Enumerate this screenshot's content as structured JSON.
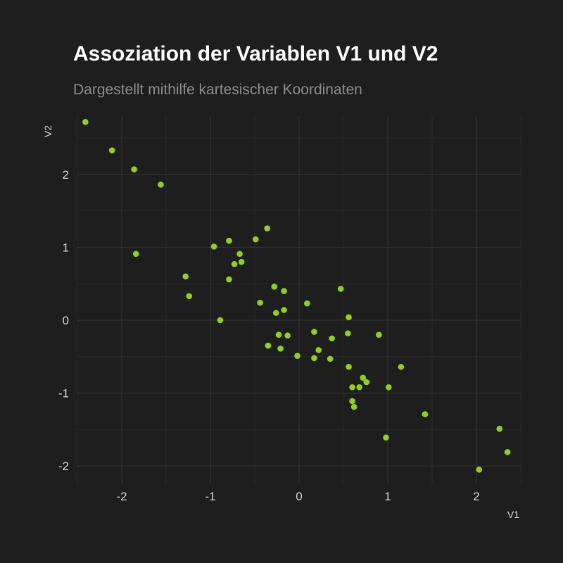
{
  "chart_data": {
    "type": "scatter",
    "title": "Assoziation der Variablen V1 und V2",
    "subtitle": "Dargestellt mithilfe kartesischer Koordinaten",
    "xlabel": "V1",
    "ylabel": "V2",
    "xlim": [
      -2.5,
      2.5
    ],
    "ylim": [
      -2.25,
      2.8
    ],
    "x_ticks": [
      -2,
      -1,
      0,
      1,
      2
    ],
    "y_ticks": [
      -2,
      -1,
      0,
      1,
      2
    ],
    "grid": true,
    "colors": {
      "background": "#1e1e1e",
      "point": "#8fd11e"
    },
    "points": [
      {
        "x": -2.41,
        "y": 2.72
      },
      {
        "x": -2.11,
        "y": 2.33
      },
      {
        "x": -1.86,
        "y": 2.07
      },
      {
        "x": -1.56,
        "y": 1.86
      },
      {
        "x": -1.84,
        "y": 0.91
      },
      {
        "x": -1.28,
        "y": 0.6
      },
      {
        "x": -1.24,
        "y": 0.33
      },
      {
        "x": -0.96,
        "y": 1.01
      },
      {
        "x": -0.89,
        "y": 0.0
      },
      {
        "x": -0.79,
        "y": 1.09
      },
      {
        "x": -0.79,
        "y": 0.56
      },
      {
        "x": -0.73,
        "y": 0.77
      },
      {
        "x": -0.67,
        "y": 0.91
      },
      {
        "x": -0.65,
        "y": 0.8
      },
      {
        "x": -0.49,
        "y": 1.11
      },
      {
        "x": -0.44,
        "y": 0.24
      },
      {
        "x": -0.36,
        "y": 1.26
      },
      {
        "x": -0.35,
        "y": -0.35
      },
      {
        "x": -0.28,
        "y": 0.46
      },
      {
        "x": -0.26,
        "y": 0.1
      },
      {
        "x": -0.23,
        "y": -0.2
      },
      {
        "x": -0.21,
        "y": -0.39
      },
      {
        "x": -0.17,
        "y": 0.4
      },
      {
        "x": -0.17,
        "y": 0.14
      },
      {
        "x": -0.13,
        "y": -0.21
      },
      {
        "x": -0.02,
        "y": -0.49
      },
      {
        "x": 0.09,
        "y": 0.23
      },
      {
        "x": 0.17,
        "y": -0.16
      },
      {
        "x": 0.17,
        "y": -0.52
      },
      {
        "x": 0.22,
        "y": -0.41
      },
      {
        "x": 0.35,
        "y": -0.53
      },
      {
        "x": 0.37,
        "y": -0.25
      },
      {
        "x": 0.47,
        "y": 0.43
      },
      {
        "x": 0.55,
        "y": -0.18
      },
      {
        "x": 0.56,
        "y": 0.04
      },
      {
        "x": 0.56,
        "y": -0.64
      },
      {
        "x": 0.6,
        "y": -0.92
      },
      {
        "x": 0.6,
        "y": -1.11
      },
      {
        "x": 0.62,
        "y": -1.19
      },
      {
        "x": 0.68,
        "y": -0.92
      },
      {
        "x": 0.72,
        "y": -0.79
      },
      {
        "x": 0.76,
        "y": -0.85
      },
      {
        "x": 0.9,
        "y": -0.2
      },
      {
        "x": 0.98,
        "y": -1.61
      },
      {
        "x": 1.01,
        "y": -0.92
      },
      {
        "x": 1.15,
        "y": -0.64
      },
      {
        "x": 1.42,
        "y": -1.29
      },
      {
        "x": 2.03,
        "y": -2.05
      },
      {
        "x": 2.26,
        "y": -1.49
      },
      {
        "x": 2.35,
        "y": -1.81
      }
    ]
  }
}
